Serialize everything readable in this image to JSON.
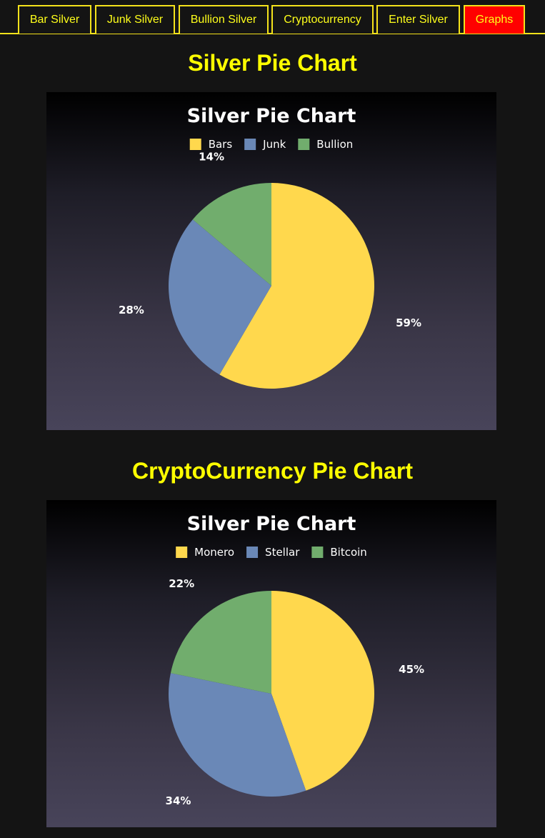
{
  "nav": {
    "items": [
      {
        "label": "Bar Silver",
        "active": false
      },
      {
        "label": "Junk Silver",
        "active": false
      },
      {
        "label": "Bullion Silver",
        "active": false
      },
      {
        "label": "Cryptocurrency",
        "active": false
      },
      {
        "label": "Enter Silver",
        "active": false
      },
      {
        "label": "Graphs",
        "active": true
      }
    ]
  },
  "sections": [
    {
      "heading": "Silver Pie Chart"
    },
    {
      "heading": "CryptoCurrency Pie Chart"
    }
  ],
  "chart_data": [
    {
      "type": "pie",
      "title": "Silver Pie Chart",
      "legend_position": "top",
      "categories": [
        "Bars",
        "Junk",
        "Bullion"
      ],
      "values": [
        59,
        28,
        14
      ],
      "labels": [
        "59%",
        "28%",
        "14%"
      ],
      "colors": [
        "#ffd84d",
        "#6a88b7",
        "#71ad6d"
      ]
    },
    {
      "type": "pie",
      "title": "Silver Pie Chart",
      "legend_position": "top",
      "categories": [
        "Monero",
        "Stellar",
        "Bitcoin"
      ],
      "values": [
        45,
        34,
        22
      ],
      "labels": [
        "45%",
        "34%",
        "22%"
      ],
      "colors": [
        "#ffd84d",
        "#6a88b7",
        "#71ad6d"
      ]
    }
  ]
}
